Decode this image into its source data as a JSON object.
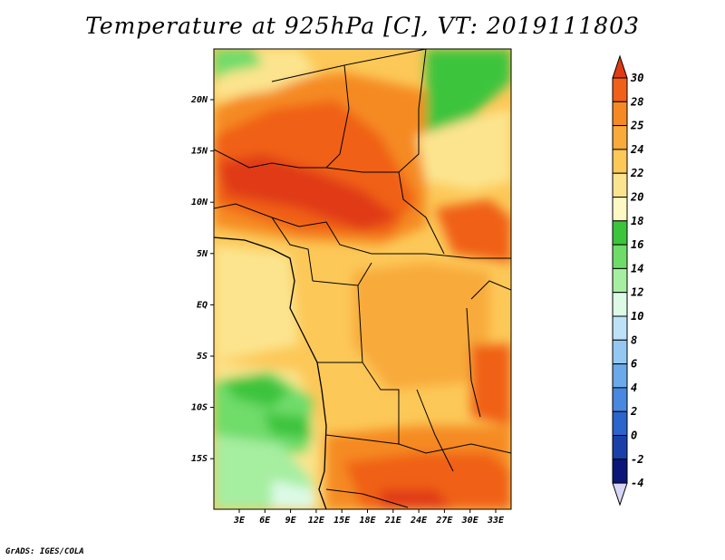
{
  "title": "Temperature at 925hPa [C], VT: 2019111803",
  "credit": "GrADS: IGES/COLA",
  "lat_ticks": [
    "20N",
    "15N",
    "10N",
    "5N",
    "EQ",
    "5S",
    "10S",
    "15S"
  ],
  "lon_ticks": [
    "3E",
    "6E",
    "9E",
    "12E",
    "15E",
    "18E",
    "21E",
    "24E",
    "27E",
    "30E",
    "33E"
  ],
  "legend": {
    "labels": [
      "30",
      "28",
      "25",
      "24",
      "22",
      "20",
      "18",
      "16",
      "14",
      "12",
      "10",
      "8",
      "6",
      "4",
      "2",
      "0",
      "-2",
      "-4"
    ],
    "colors": [
      "#e03a14",
      "#f06018",
      "#f58a24",
      "#f8aa3a",
      "#fcc858",
      "#fce48e",
      "#fef9c4",
      "#3cc43c",
      "#6fdc6a",
      "#a6eea0",
      "#dcfae6",
      "#bde2f8",
      "#94c8f2",
      "#6aaaea",
      "#4888de",
      "#2a64cc",
      "#1840a8",
      "#0c1678",
      "#d8d6f6"
    ]
  }
}
